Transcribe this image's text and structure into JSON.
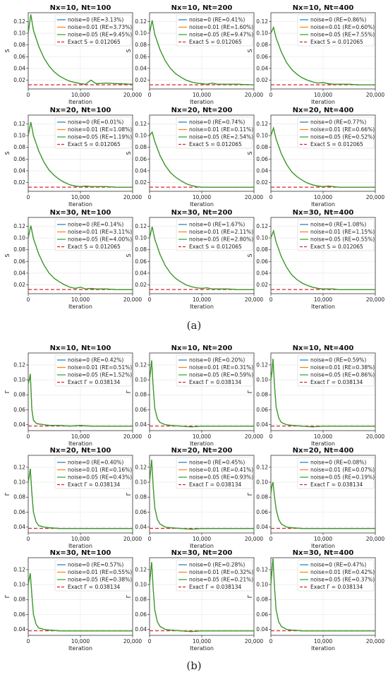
{
  "captions": {
    "a": "(a)",
    "b": "(b)"
  },
  "colors": {
    "noise0": "#1f77b4",
    "noise001": "#ff7f0e",
    "noise005": "#2ca02c",
    "exact": "#d62728"
  },
  "chart_data": [
    {
      "figure": "(a)",
      "type": "line",
      "ylabel": "S",
      "xlabel": "Iteration",
      "exact_value": 0.012065,
      "exact_label": "Exact S = 0.012065",
      "xlim": [
        0,
        20000
      ],
      "ylim": [
        0.005,
        0.135
      ],
      "xticks": [
        0,
        10000,
        20000
      ],
      "xtick_labels": [
        "0",
        "10,000",
        "20,000"
      ],
      "yticks": [
        0.02,
        0.04,
        0.06,
        0.08,
        0.1,
        0.12
      ],
      "ytick_labels": [
        "0.02",
        "0.04",
        "0.06",
        "0.08",
        "0.10",
        "0.12"
      ],
      "grid": true,
      "legend_position": "top-right",
      "panels": [
        {
          "title": "Nx=10, Nt=100",
          "peak": 0.132,
          "legend": [
            "noise=0 (RE=3.13%)",
            "noise=0.01 (RE=3.73%)",
            "noise=0.05 (RE=9.45%)"
          ],
          "x": [
            0,
            500,
            1000,
            2000,
            3000,
            4000,
            5000,
            6000,
            7000,
            8000,
            9000,
            10000,
            11000,
            12000,
            13000,
            15000,
            17000,
            20000
          ],
          "y": [
            0.1,
            0.132,
            0.105,
            0.078,
            0.058,
            0.044,
            0.034,
            0.027,
            0.022,
            0.018,
            0.016,
            0.014,
            0.013,
            0.02,
            0.014,
            0.015,
            0.014,
            0.013
          ]
        },
        {
          "title": "Nx=10, Nt=200",
          "peak": 0.122,
          "legend": [
            "noise=0 (RE=0.41%)",
            "noise=0.01 (RE=1.60%)",
            "noise=0.05 (RE=9.47%)"
          ],
          "x": [
            0,
            500,
            1000,
            2000,
            3000,
            4000,
            5000,
            6000,
            7000,
            8000,
            9000,
            10000,
            11000,
            12000,
            13000,
            15000,
            17000,
            20000
          ],
          "y": [
            0.1,
            0.122,
            0.098,
            0.072,
            0.053,
            0.04,
            0.031,
            0.025,
            0.02,
            0.017,
            0.015,
            0.014,
            0.013,
            0.015,
            0.013,
            0.013,
            0.013,
            0.012
          ]
        },
        {
          "title": "Nx=10, Nt=400",
          "peak": 0.11,
          "legend": [
            "noise=0 (RE=0.86%)",
            "noise=0.01 (RE=0.60%)",
            "noise=0.05 (RE=7.55%)"
          ],
          "x": [
            0,
            500,
            1000,
            2000,
            3000,
            4000,
            5000,
            6000,
            7000,
            8000,
            9000,
            10000,
            11000,
            12000,
            13000,
            15000,
            17000,
            20000
          ],
          "y": [
            0.1,
            0.11,
            0.092,
            0.068,
            0.05,
            0.038,
            0.03,
            0.024,
            0.02,
            0.017,
            0.015,
            0.016,
            0.014,
            0.013,
            0.013,
            0.013,
            0.012,
            0.012
          ]
        },
        {
          "title": "Nx=20, Nt=100",
          "peak": 0.123,
          "legend": [
            "noise=0 (RE=0.01%)",
            "noise=0.01 (RE=1.08%)",
            "noise=0.05 (RE=1.19%)"
          ],
          "x": [
            0,
            500,
            1000,
            2000,
            3000,
            4000,
            5000,
            6000,
            7000,
            8000,
            9000,
            10000,
            11000,
            12000,
            13000,
            15000,
            17000,
            20000
          ],
          "y": [
            0.1,
            0.123,
            0.1,
            0.074,
            0.055,
            0.041,
            0.032,
            0.025,
            0.02,
            0.016,
            0.014,
            0.013,
            0.014,
            0.013,
            0.013,
            0.013,
            0.012,
            0.012
          ]
        },
        {
          "title": "Nx=20, Nt=200",
          "peak": 0.106,
          "legend": [
            "noise=0 (RE=0.74%)",
            "noise=0.01 (RE=0.11%)",
            "noise=0.05 (RE=2.54%)"
          ],
          "x": [
            0,
            500,
            1000,
            2000,
            3000,
            4000,
            5000,
            6000,
            7000,
            8000,
            9000,
            10000,
            11000,
            12000,
            13000,
            15000,
            17000,
            20000
          ],
          "y": [
            0.1,
            0.106,
            0.09,
            0.066,
            0.049,
            0.037,
            0.029,
            0.023,
            0.018,
            0.015,
            0.013,
            0.012,
            0.012,
            0.012,
            0.012,
            0.012,
            0.012,
            0.012
          ]
        },
        {
          "title": "Nx=20, Nt=400",
          "peak": 0.113,
          "legend": [
            "noise=0 (RE=0.77%)",
            "noise=0.01 (RE=0.66%)",
            "noise=0.05 (RE=0.52%)"
          ],
          "x": [
            0,
            500,
            1000,
            2000,
            3000,
            4000,
            5000,
            6000,
            7000,
            8000,
            9000,
            10000,
            11000,
            12000,
            13000,
            15000,
            17000,
            20000
          ],
          "y": [
            0.1,
            0.113,
            0.094,
            0.069,
            0.051,
            0.038,
            0.03,
            0.024,
            0.019,
            0.016,
            0.014,
            0.013,
            0.014,
            0.013,
            0.012,
            0.012,
            0.012,
            0.012
          ]
        },
        {
          "title": "Nx=30, Nt=100",
          "peak": 0.121,
          "legend": [
            "noise=0 (RE=0.14%)",
            "noise=0.01 (RE=3.11%)",
            "noise=0.05 (RE=4.00%)"
          ],
          "x": [
            0,
            500,
            1000,
            2000,
            3000,
            4000,
            5000,
            6000,
            7000,
            8000,
            9000,
            10000,
            11000,
            12000,
            13000,
            15000,
            17000,
            20000
          ],
          "y": [
            0.1,
            0.121,
            0.099,
            0.073,
            0.054,
            0.04,
            0.031,
            0.025,
            0.02,
            0.016,
            0.014,
            0.016,
            0.013,
            0.014,
            0.013,
            0.013,
            0.012,
            0.012
          ]
        },
        {
          "title": "Nx=30, Nt=200",
          "peak": 0.119,
          "legend": [
            "noise=0 (RE=1.67%)",
            "noise=0.01 (RE=2.11%)",
            "noise=0.05 (RE=2.80%)"
          ],
          "x": [
            0,
            500,
            1000,
            2000,
            3000,
            4000,
            5000,
            6000,
            7000,
            8000,
            9000,
            10000,
            11000,
            12000,
            13000,
            15000,
            17000,
            20000
          ],
          "y": [
            0.1,
            0.119,
            0.098,
            0.072,
            0.053,
            0.04,
            0.031,
            0.025,
            0.02,
            0.017,
            0.015,
            0.014,
            0.015,
            0.013,
            0.013,
            0.013,
            0.012,
            0.012
          ]
        },
        {
          "title": "Nx=30, Nt=400",
          "peak": 0.112,
          "legend": [
            "noise=0 (RE=1.08%)",
            "noise=0.01 (RE=1.15%)",
            "noise=0.05 (RE=0.55%)"
          ],
          "x": [
            0,
            500,
            1000,
            2000,
            3000,
            4000,
            5000,
            6000,
            7000,
            8000,
            9000,
            10000,
            11000,
            12000,
            13000,
            15000,
            17000,
            20000
          ],
          "y": [
            0.1,
            0.112,
            0.093,
            0.068,
            0.05,
            0.037,
            0.029,
            0.023,
            0.019,
            0.016,
            0.014,
            0.013,
            0.013,
            0.013,
            0.012,
            0.012,
            0.012,
            0.012
          ]
        }
      ]
    },
    {
      "figure": "(b)",
      "type": "line",
      "ylabel": "Γ",
      "xlabel": "Iteration",
      "exact_value": 0.038134,
      "exact_label": "Exact Γ = 0.038134",
      "xlim": [
        0,
        20000
      ],
      "ylim": [
        0.032,
        0.136
      ],
      "xticks": [
        0,
        10000,
        20000
      ],
      "xtick_labels": [
        "0",
        "10,000",
        "20,000"
      ],
      "yticks": [
        0.04,
        0.06,
        0.08,
        0.1,
        0.12
      ],
      "ytick_labels": [
        "0.04",
        "0.06",
        "0.08",
        "0.10",
        "0.12"
      ],
      "grid": true,
      "legend_position": "top-right",
      "panels": [
        {
          "title": "Nx=10, Nt=100",
          "legend": [
            "noise=0 (RE=0.42%)",
            "noise=0.01 (RE=0.51%)",
            "noise=0.05 (RE=1.52%)"
          ],
          "x": [
            0,
            200,
            400,
            700,
            1000,
            1500,
            2000,
            3000,
            4000,
            6000,
            8000,
            10000,
            12000,
            15000,
            18000,
            20000
          ],
          "y": [
            0.095,
            0.1,
            0.108,
            0.06,
            0.046,
            0.042,
            0.041,
            0.04,
            0.039,
            0.039,
            0.038,
            0.039,
            0.038,
            0.038,
            0.038,
            0.038
          ]
        },
        {
          "title": "Nx=10, Nt=200",
          "legend": [
            "noise=0 (RE=0.20%)",
            "noise=0.01 (RE=0.31%)",
            "noise=0.05 (RE=0.59%)"
          ],
          "x": [
            0,
            200,
            400,
            700,
            1000,
            1500,
            2000,
            3000,
            4000,
            6000,
            8000,
            10000,
            12000,
            15000,
            18000,
            20000
          ],
          "y": [
            0.1,
            0.112,
            0.126,
            0.09,
            0.062,
            0.048,
            0.043,
            0.04,
            0.039,
            0.038,
            0.037,
            0.038,
            0.038,
            0.038,
            0.038,
            0.038
          ]
        },
        {
          "title": "Nx=10, Nt=400",
          "legend": [
            "noise=0 (RE=0.59%)",
            "noise=0.01 (RE=0.38%)",
            "noise=0.05 (RE=0.86%)"
          ],
          "x": [
            0,
            200,
            400,
            700,
            1000,
            1500,
            2000,
            3000,
            4000,
            6000,
            8000,
            10000,
            12000,
            15000,
            18000,
            20000
          ],
          "y": [
            0.1,
            0.11,
            0.128,
            0.092,
            0.064,
            0.049,
            0.043,
            0.04,
            0.039,
            0.038,
            0.037,
            0.038,
            0.038,
            0.038,
            0.038,
            0.038
          ]
        },
        {
          "title": "Nx=20, Nt=100",
          "legend": [
            "noise=0 (RE=0.40%)",
            "noise=0.01 (RE=0.16%)",
            "noise=0.05 (RE=0.43%)"
          ],
          "x": [
            0,
            200,
            400,
            700,
            1000,
            1500,
            2000,
            3000,
            4000,
            6000,
            8000,
            10000,
            12000,
            15000,
            18000,
            20000
          ],
          "y": [
            0.1,
            0.108,
            0.118,
            0.085,
            0.06,
            0.047,
            0.042,
            0.04,
            0.039,
            0.038,
            0.038,
            0.038,
            0.038,
            0.038,
            0.038,
            0.038
          ]
        },
        {
          "title": "Nx=20, Nt=200",
          "legend": [
            "noise=0 (RE=0.45%)",
            "noise=0.01 (RE=0.41%)",
            "noise=0.05 (RE=0.93%)"
          ],
          "x": [
            0,
            200,
            400,
            700,
            1000,
            1500,
            2000,
            3000,
            4000,
            6000,
            8000,
            10000,
            12000,
            15000,
            18000,
            20000
          ],
          "y": [
            0.1,
            0.115,
            0.13,
            0.094,
            0.066,
            0.05,
            0.044,
            0.04,
            0.039,
            0.038,
            0.037,
            0.038,
            0.038,
            0.038,
            0.038,
            0.038
          ]
        },
        {
          "title": "Nx=20, Nt=400",
          "legend": [
            "noise=0 (RE=0.08%)",
            "noise=0.01 (RE=0.07%)",
            "noise=0.05 (RE=0.19%)"
          ],
          "x": [
            0,
            200,
            400,
            700,
            1000,
            1500,
            2000,
            3000,
            4000,
            6000,
            8000,
            10000,
            12000,
            15000,
            18000,
            20000
          ],
          "y": [
            0.085,
            0.095,
            0.1,
            0.08,
            0.064,
            0.05,
            0.044,
            0.04,
            0.039,
            0.038,
            0.038,
            0.038,
            0.038,
            0.038,
            0.038,
            0.038
          ]
        },
        {
          "title": "Nx=30, Nt=100",
          "legend": [
            "noise=0 (RE=0.57%)",
            "noise=0.01 (RE=0.55%)",
            "noise=0.05 (RE=0.38%)"
          ],
          "x": [
            0,
            200,
            400,
            700,
            1000,
            1500,
            2000,
            3000,
            4000,
            6000,
            8000,
            10000,
            12000,
            15000,
            18000,
            20000
          ],
          "y": [
            0.1,
            0.108,
            0.115,
            0.086,
            0.06,
            0.047,
            0.042,
            0.04,
            0.039,
            0.038,
            0.038,
            0.038,
            0.038,
            0.038,
            0.038,
            0.038
          ]
        },
        {
          "title": "Nx=30, Nt=200",
          "legend": [
            "noise=0 (RE=0.28%)",
            "noise=0.01 (RE=0.32%)",
            "noise=0.05 (RE=0.21%)"
          ],
          "x": [
            0,
            200,
            400,
            700,
            1000,
            1500,
            2000,
            3000,
            4000,
            6000,
            8000,
            10000,
            12000,
            15000,
            18000,
            20000
          ],
          "y": [
            0.1,
            0.115,
            0.13,
            0.094,
            0.066,
            0.05,
            0.044,
            0.04,
            0.039,
            0.038,
            0.037,
            0.038,
            0.038,
            0.038,
            0.038,
            0.038
          ]
        },
        {
          "title": "Nx=30, Nt=400",
          "legend": [
            "noise=0 (RE=0.47%)",
            "noise=0.01 (RE=0.42%)",
            "noise=0.05 (RE=0.37%)"
          ],
          "x": [
            0,
            200,
            400,
            700,
            1000,
            1500,
            2000,
            3000,
            4000,
            6000,
            8000,
            10000,
            12000,
            15000,
            18000,
            20000
          ],
          "y": [
            0.1,
            0.118,
            0.135,
            0.096,
            0.066,
            0.05,
            0.044,
            0.04,
            0.039,
            0.038,
            0.038,
            0.038,
            0.038,
            0.038,
            0.038,
            0.038
          ]
        }
      ]
    }
  ]
}
